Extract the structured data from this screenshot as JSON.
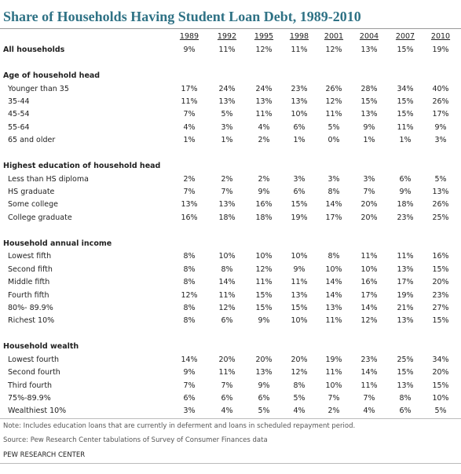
{
  "header": {
    "title": "Share of Households Having Student Loan Debt, 1989-2010"
  },
  "table": {
    "columns": [
      "1989",
      "1992",
      "1995",
      "1998",
      "2001",
      "2004",
      "2007",
      "2010"
    ],
    "total": {
      "label": "All households",
      "values": [
        "9%",
        "11%",
        "12%",
        "11%",
        "12%",
        "13%",
        "15%",
        "19%"
      ]
    },
    "sections": [
      {
        "title": "Age of household head",
        "rows": [
          {
            "label": "Younger than 35",
            "values": [
              "17%",
              "24%",
              "24%",
              "23%",
              "26%",
              "28%",
              "34%",
              "40%"
            ]
          },
          {
            "label": "35-44",
            "values": [
              "11%",
              "13%",
              "13%",
              "13%",
              "12%",
              "15%",
              "15%",
              "26%"
            ]
          },
          {
            "label": "45-54",
            "values": [
              "7%",
              "5%",
              "11%",
              "10%",
              "11%",
              "13%",
              "15%",
              "17%"
            ]
          },
          {
            "label": "55-64",
            "values": [
              "4%",
              "3%",
              "4%",
              "6%",
              "5%",
              "9%",
              "11%",
              "9%"
            ]
          },
          {
            "label": "65 and older",
            "values": [
              "1%",
              "1%",
              "2%",
              "1%",
              "0%",
              "1%",
              "1%",
              "3%"
            ]
          }
        ]
      },
      {
        "title": "Highest education of household head",
        "rows": [
          {
            "label": "Less than HS diploma",
            "values": [
              "2%",
              "2%",
              "2%",
              "3%",
              "3%",
              "3%",
              "6%",
              "5%"
            ]
          },
          {
            "label": "HS graduate",
            "values": [
              "7%",
              "7%",
              "9%",
              "6%",
              "8%",
              "7%",
              "9%",
              "13%"
            ]
          },
          {
            "label": "Some college",
            "values": [
              "13%",
              "13%",
              "16%",
              "15%",
              "14%",
              "20%",
              "18%",
              "26%"
            ]
          },
          {
            "label": "College graduate",
            "values": [
              "16%",
              "18%",
              "18%",
              "19%",
              "17%",
              "20%",
              "23%",
              "25%"
            ]
          }
        ]
      },
      {
        "title": "Household  annual income",
        "rows": [
          {
            "label": "Lowest fifth",
            "values": [
              "8%",
              "10%",
              "10%",
              "10%",
              "8%",
              "11%",
              "11%",
              "16%"
            ]
          },
          {
            "label": "Second fifth",
            "values": [
              "8%",
              "8%",
              "12%",
              "9%",
              "10%",
              "10%",
              "13%",
              "15%"
            ]
          },
          {
            "label": "Middle fifth",
            "values": [
              "8%",
              "14%",
              "11%",
              "11%",
              "14%",
              "16%",
              "17%",
              "20%"
            ]
          },
          {
            "label": "Fourth fifth",
            "values": [
              "12%",
              "11%",
              "15%",
              "13%",
              "14%",
              "17%",
              "19%",
              "23%"
            ]
          },
          {
            "label": "80%- 89.9%",
            "values": [
              "8%",
              "12%",
              "15%",
              "15%",
              "13%",
              "14%",
              "21%",
              "27%"
            ]
          },
          {
            "label": "Richest 10%",
            "values": [
              "8%",
              "6%",
              "9%",
              "10%",
              "11%",
              "12%",
              "13%",
              "15%"
            ]
          }
        ]
      },
      {
        "title": "Household wealth",
        "rows": [
          {
            "label": "Lowest fourth",
            "values": [
              "14%",
              "20%",
              "20%",
              "20%",
              "19%",
              "23%",
              "25%",
              "34%"
            ]
          },
          {
            "label": "Second fourth",
            "values": [
              "9%",
              "11%",
              "13%",
              "12%",
              "11%",
              "14%",
              "15%",
              "20%"
            ]
          },
          {
            "label": "Third fourth",
            "values": [
              "7%",
              "7%",
              "9%",
              "8%",
              "10%",
              "11%",
              "13%",
              "15%"
            ]
          },
          {
            "label": "75%-89.9%",
            "values": [
              "6%",
              "6%",
              "6%",
              "5%",
              "7%",
              "7%",
              "8%",
              "10%"
            ]
          },
          {
            "label": "Wealthiest 10%",
            "values": [
              "3%",
              "4%",
              "5%",
              "4%",
              "2%",
              "4%",
              "6%",
              "5%"
            ]
          }
        ]
      }
    ]
  },
  "notes": [
    "Note: Includes education loans that are currently in deferment and loans in scheduled repayment period.",
    "Source: Pew Research Center tabulations of Survey of Consumer Finances data"
  ],
  "footer": "PEW RESEARCH CENTER"
}
